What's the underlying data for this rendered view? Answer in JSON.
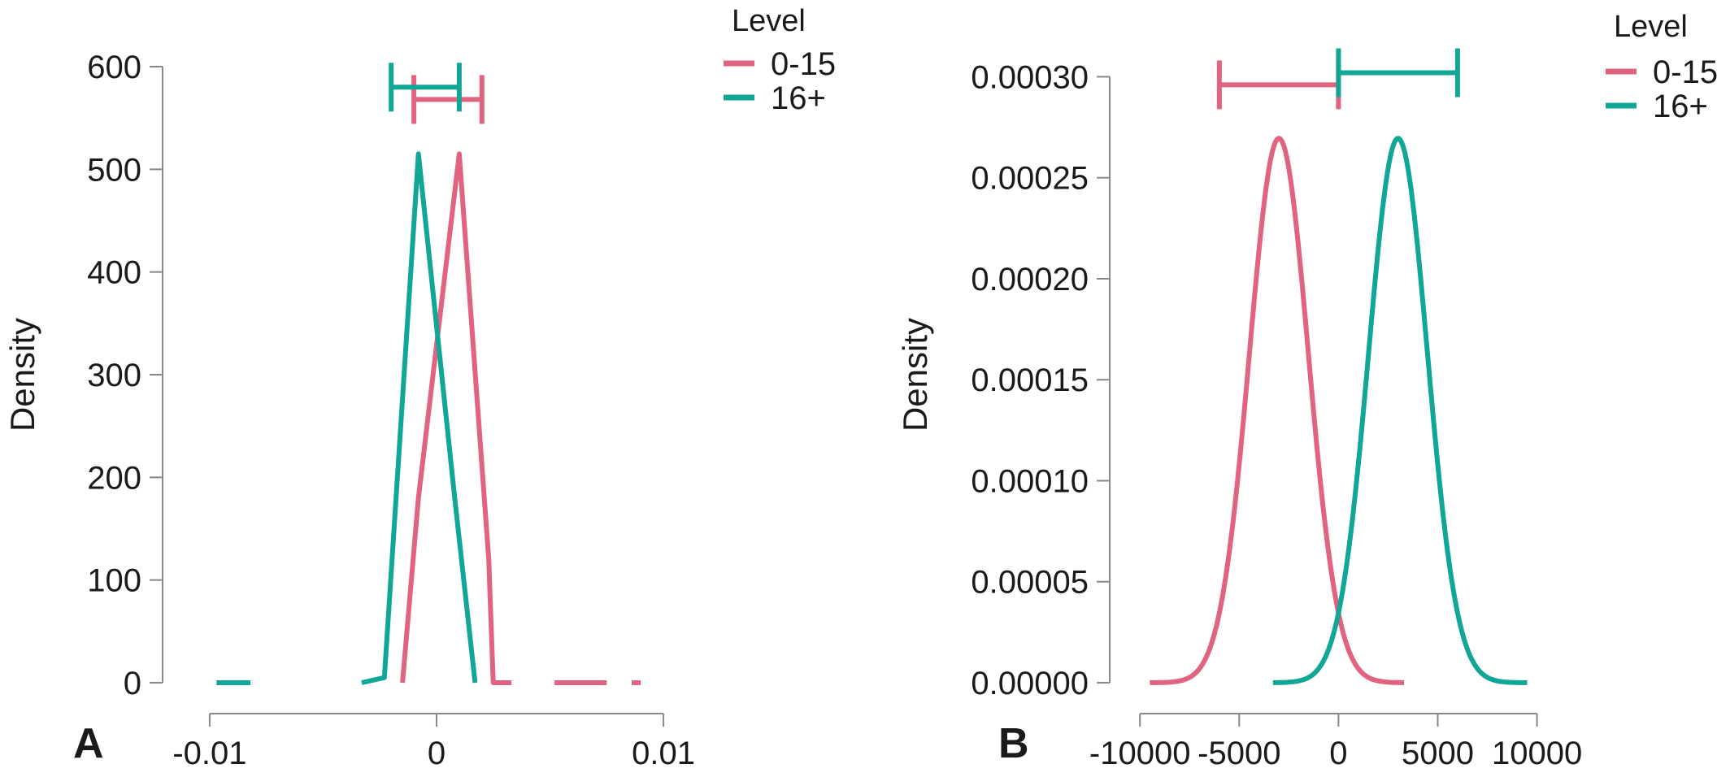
{
  "chart_data": [
    {
      "type": "line",
      "panel_label": "A",
      "xlabel": "",
      "ylabel": "Density",
      "xlim": [
        -0.011,
        0.0105
      ],
      "ylim": [
        0,
        600
      ],
      "xticks": [
        {
          "value": -0.01,
          "label": "-0.01"
        },
        {
          "value": 0,
          "label": "0"
        },
        {
          "value": 0.01,
          "label": "0.01"
        }
      ],
      "yticks": [
        {
          "value": 0,
          "label": "0"
        },
        {
          "value": 100,
          "label": "100"
        },
        {
          "value": 200,
          "label": "200"
        },
        {
          "value": 300,
          "label": "300"
        },
        {
          "value": 400,
          "label": "400"
        },
        {
          "value": 500,
          "label": "500"
        },
        {
          "value": 600,
          "label": "600"
        }
      ],
      "legend": {
        "title": "Level",
        "position": "top-right"
      },
      "series": [
        {
          "name": "0-15",
          "color": "#E0637F",
          "x": [
            -0.0015,
            -0.0008,
            0.001,
            0.0023,
            0.0025,
            0.0033
          ],
          "y": [
            0,
            180,
            515,
            120,
            0,
            0
          ],
          "tail_segments": [
            [
              0.0052,
              0.0075
            ],
            [
              0.0086,
              0.009
            ]
          ],
          "interval": {
            "low": -0.001,
            "high": 0.002,
            "y": 568
          }
        },
        {
          "name": "16+",
          "color": "#12A697",
          "x": [
            -0.0033,
            -0.0023,
            -0.0008,
            0.0008,
            0.0017
          ],
          "y": [
            0,
            5,
            515,
            180,
            0
          ],
          "tail_segments": [
            [
              -0.0097,
              -0.0082
            ]
          ],
          "interval": {
            "low": -0.002,
            "high": 0.001,
            "y": 580
          }
        }
      ]
    },
    {
      "type": "line",
      "panel_label": "B",
      "xlabel": "",
      "ylabel": "Density",
      "xlim": [
        -10500,
        11000
      ],
      "ylim": [
        0,
        0.000305
      ],
      "xticks": [
        {
          "value": -10000,
          "label": "-10000"
        },
        {
          "value": -5000,
          "label": "-5000"
        },
        {
          "value": 0,
          "label": "0"
        },
        {
          "value": 5000,
          "label": "5000"
        },
        {
          "value": 10000,
          "label": "10000"
        }
      ],
      "yticks": [
        {
          "value": 0,
          "label": "0.00000"
        },
        {
          "value": 5e-05,
          "label": "0.00005"
        },
        {
          "value": 0.0001,
          "label": "0.00010"
        },
        {
          "value": 0.00015,
          "label": "0.00015"
        },
        {
          "value": 0.0002,
          "label": "0.00020"
        },
        {
          "value": 0.00025,
          "label": "0.00025"
        },
        {
          "value": 0.0003,
          "label": "0.00030"
        }
      ],
      "legend": {
        "title": "Level",
        "position": "top-right"
      },
      "series": [
        {
          "name": "0-15",
          "color": "#E0637F",
          "distribution": {
            "mean": -3000,
            "sd": 1480,
            "from": -9500,
            "to": 3300
          },
          "interval": {
            "low": -6000,
            "high": 0,
            "y": 0.000296
          }
        },
        {
          "name": "16+",
          "color": "#12A697",
          "distribution": {
            "mean": 3000,
            "sd": 1480,
            "from": -3300,
            "to": 9500
          },
          "interval": {
            "low": 0,
            "high": 6000,
            "y": 0.000302
          }
        }
      ]
    }
  ]
}
